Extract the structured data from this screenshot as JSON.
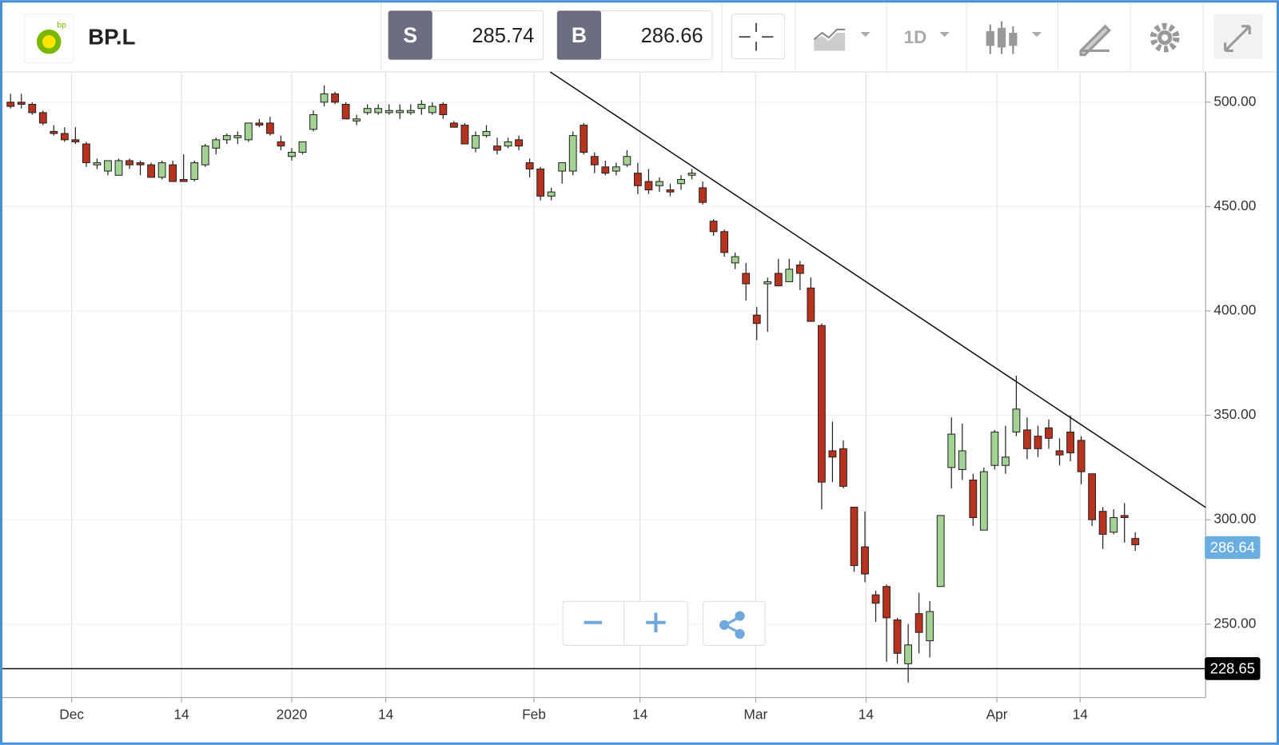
{
  "header": {
    "symbol": "BP.L",
    "logo_text": "bp",
    "sell": {
      "label": "S",
      "price": 285.74
    },
    "buy": {
      "label": "B",
      "price": 286.66
    },
    "interval": "1D"
  },
  "chart_data": {
    "type": "candlestick",
    "up_color": "#a3d393",
    "down_color": "#b8321d",
    "open": [
      500,
      500,
      499,
      495,
      486,
      485,
      482,
      480,
      470,
      467,
      465,
      472,
      471,
      470,
      464,
      470,
      463,
      463,
      470,
      478,
      482,
      483,
      482,
      490,
      490,
      481,
      474,
      476,
      487,
      500,
      504,
      499,
      491,
      495,
      495,
      495,
      495,
      495,
      497,
      495,
      499,
      490,
      489,
      478,
      484,
      479,
      479,
      482,
      471,
      468,
      455,
      467,
      467,
      489,
      474,
      469,
      467,
      470,
      466,
      462,
      460,
      458,
      461,
      465,
      459,
      443,
      438,
      423,
      418,
      398,
      413,
      418,
      414,
      422,
      411,
      393,
      333,
      334,
      306,
      287,
      264,
      268,
      252,
      231,
      255,
      242,
      268,
      325,
      324,
      319,
      295,
      326,
      326,
      342,
      343,
      340,
      344,
      333,
      342,
      338,
      322,
      304,
      294,
      302,
      291
    ],
    "high": [
      504,
      504,
      500,
      496,
      489,
      488,
      488,
      481,
      473,
      472,
      473,
      473,
      472,
      471,
      472,
      472,
      475,
      472,
      480,
      483,
      485,
      486,
      490,
      492,
      493,
      484,
      478,
      481,
      496,
      508,
      505,
      500,
      494,
      499,
      499,
      499,
      499,
      499,
      501,
      500,
      500,
      491,
      490,
      486,
      489,
      483,
      483,
      484,
      473,
      469,
      459,
      471,
      486,
      490,
      476,
      472,
      471,
      477,
      471,
      468,
      464,
      461,
      465,
      468,
      462,
      444,
      439,
      428,
      423,
      402,
      416,
      425,
      425,
      424,
      416,
      394,
      347,
      338,
      306,
      304,
      266,
      269,
      253,
      250,
      265,
      261,
      302,
      349,
      346,
      322,
      325,
      343,
      345,
      369,
      349,
      345,
      348,
      339,
      350,
      340,
      322,
      306,
      305,
      308,
      294
    ],
    "low": [
      497,
      497,
      494,
      489,
      484,
      481,
      480,
      469,
      468,
      465,
      465,
      468,
      465,
      464,
      463,
      462,
      462,
      462,
      469,
      475,
      480,
      480,
      481,
      488,
      484,
      477,
      472,
      475,
      486,
      498,
      499,
      492,
      489,
      494,
      494,
      494,
      492,
      494,
      494,
      494,
      492,
      488,
      480,
      476,
      483,
      475,
      478,
      477,
      464,
      453,
      453,
      461,
      465,
      475,
      466,
      465,
      465,
      469,
      456,
      456,
      457,
      455,
      458,
      463,
      451,
      436,
      426,
      420,
      405,
      386,
      390,
      412,
      414,
      410,
      395,
      305,
      318,
      315,
      275,
      270,
      251,
      232,
      231,
      222,
      236,
      234,
      268,
      315,
      319,
      297,
      295,
      324,
      322,
      340,
      329,
      330,
      334,
      326,
      328,
      317,
      297,
      286,
      293,
      289,
      285
    ],
    "close": [
      498,
      499,
      495,
      490,
      485,
      482,
      481,
      471,
      471,
      472,
      472,
      470,
      470,
      464,
      471,
      462,
      462,
      471,
      479,
      482,
      484,
      484,
      490,
      489,
      485,
      479,
      476,
      481,
      494,
      504,
      500,
      492,
      492,
      497,
      497,
      496,
      496,
      496,
      499,
      498,
      494,
      488,
      480,
      484,
      486,
      477,
      481,
      479,
      468,
      455,
      457,
      471,
      484,
      476,
      470,
      466,
      469,
      474,
      460,
      458,
      462,
      457,
      463,
      466,
      452,
      438,
      428,
      426,
      413,
      394,
      414,
      412,
      420,
      418,
      395,
      318,
      330,
      316,
      278,
      274,
      260,
      253,
      236,
      240,
      246,
      256,
      302,
      341,
      333,
      301,
      323,
      342,
      330,
      353,
      334,
      334,
      339,
      331,
      332,
      323,
      300,
      293,
      301,
      301,
      288
    ],
    "xlim": [
      -0.75,
      110.5
    ],
    "xticks": [
      {
        "value": 5.65,
        "label": "Dec"
      },
      {
        "value": 15.8,
        "label": "14"
      },
      {
        "value": 26.0,
        "label": "2020"
      },
      {
        "value": 34.7,
        "label": "14"
      },
      {
        "value": 48.4,
        "label": "Feb"
      },
      {
        "value": 58.2,
        "label": "14"
      },
      {
        "value": 68.9,
        "label": "Mar"
      },
      {
        "value": 79.1,
        "label": "14"
      },
      {
        "value": 91.2,
        "label": "Apr"
      },
      {
        "value": 98.9,
        "label": "14"
      }
    ],
    "ylim": [
      214.8,
      514.5
    ],
    "yticks": [
      {
        "value": 250,
        "label": "250.00"
      },
      {
        "value": 300,
        "label": "300.00"
      },
      {
        "value": 350,
        "label": "350.00"
      },
      {
        "value": 400,
        "label": "400.00"
      },
      {
        "value": 450,
        "label": "450.00"
      },
      {
        "value": 500,
        "label": "500.00"
      }
    ],
    "grid": true,
    "trendline": {
      "x": [
        49.9,
        110.5
      ],
      "y": [
        514.5,
        305.9
      ]
    },
    "support_level": 228.65,
    "current_price": 286.64
  }
}
